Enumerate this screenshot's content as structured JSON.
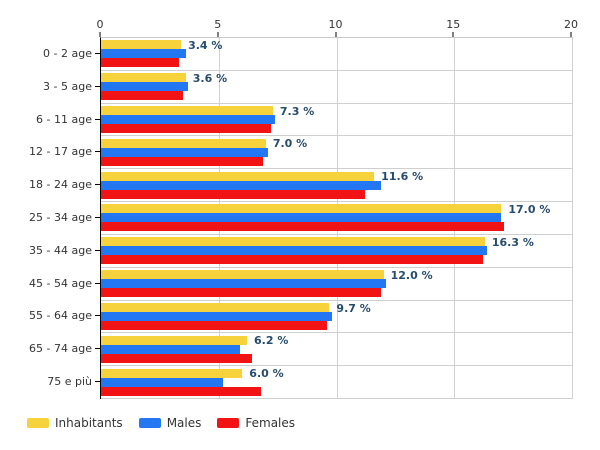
{
  "chart_data": {
    "type": "bar",
    "orientation": "horizontal",
    "title": "",
    "xlabel": "",
    "ylabel": "",
    "xlim": [
      0,
      20
    ],
    "x_ticks": [
      0,
      5,
      10,
      15,
      20
    ],
    "grid": true,
    "legend_position": "bottom-left",
    "categories": [
      "0 - 2 age",
      "3 - 5 age",
      "6 - 11 age",
      "12 - 17 age",
      "18 - 24 age",
      "25 - 34 age",
      "35 - 44 age",
      "45 - 54 age",
      "55 - 64 age",
      "65 - 74 age",
      "75 e più"
    ],
    "series": [
      {
        "name": "Inhabitants",
        "color": "#f6d33c",
        "values": [
          3.4,
          3.6,
          7.3,
          7.0,
          11.6,
          17.0,
          16.3,
          12.0,
          9.7,
          6.2,
          6.0
        ]
      },
      {
        "name": "Males",
        "color": "#2377f2",
        "values": [
          3.6,
          3.7,
          7.4,
          7.1,
          11.9,
          17.0,
          16.4,
          12.1,
          9.8,
          5.9,
          5.2
        ]
      },
      {
        "name": "Females",
        "color": "#f21414",
        "values": [
          3.3,
          3.5,
          7.2,
          6.9,
          11.2,
          17.1,
          16.2,
          11.9,
          9.6,
          6.4,
          6.8
        ]
      }
    ],
    "data_labels": [
      "3.4 %",
      "3.6 %",
      "7.3 %",
      "7.0 %",
      "11.6 %",
      "17.0 %",
      "16.3 %",
      "12.0 %",
      "9.7 %",
      "6.2 %",
      "6.0 %"
    ]
  },
  "colors": {
    "data_label": "#274b6d",
    "axis_text": "#333333",
    "gridline": "#d2d2d2",
    "axis_line": "#000000",
    "background": "#ffffff"
  }
}
